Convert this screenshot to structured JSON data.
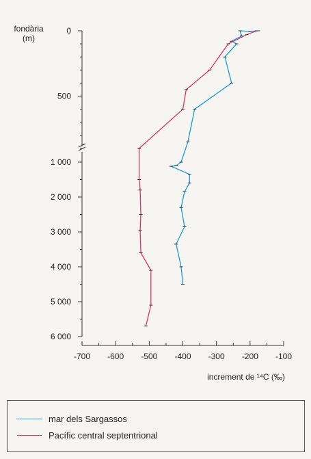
{
  "chart_data": {
    "type": "line",
    "title": "",
    "ylabel": "fondària (m)",
    "ylabel_lines": [
      "fondària",
      "(m)"
    ],
    "xlabel": "increment de ¹⁴C (‰)",
    "xlim": [
      -700,
      -100
    ],
    "x_ticks": [
      -700,
      -600,
      -500,
      -400,
      -300,
      -200,
      -100
    ],
    "x_tick_labels": [
      "-700",
      "-600",
      "-500",
      "-400",
      "-300",
      "-200",
      "-100"
    ],
    "y_upper_range": [
      0,
      900
    ],
    "y_upper_ticks": [
      0,
      500
    ],
    "y_upper_tick_labels": [
      "0",
      "500"
    ],
    "y_lower_range": [
      1000,
      6000
    ],
    "y_lower_ticks": [
      1000,
      2000,
      3000,
      4000,
      5000,
      6000
    ],
    "y_lower_tick_labels": [
      "1 000",
      "2 000",
      "3 000",
      "4 000",
      "5 000",
      "6 000"
    ],
    "axis_break": true,
    "legend_position": "bottom",
    "series": [
      {
        "name": "mar dels Sargassos",
        "color": "#1a9ad6",
        "points": [
          {
            "x": -175,
            "y": 0
          },
          {
            "x": -200,
            "y": 5
          },
          {
            "x": -230,
            "y": 0
          },
          {
            "x": -225,
            "y": 40
          },
          {
            "x": -255,
            "y": 80
          },
          {
            "x": -240,
            "y": 100
          },
          {
            "x": -275,
            "y": 200
          },
          {
            "x": -255,
            "y": 400
          },
          {
            "x": -365,
            "y": 600
          },
          {
            "x": -385,
            "y": 850
          },
          {
            "x": -405,
            "y": 1000
          },
          {
            "x": -420,
            "y": 1100
          },
          {
            "x": -435,
            "y": 1120
          },
          {
            "x": -380,
            "y": 1350
          },
          {
            "x": -380,
            "y": 1600
          },
          {
            "x": -395,
            "y": 1850
          },
          {
            "x": -405,
            "y": 2300
          },
          {
            "x": -395,
            "y": 2850
          },
          {
            "x": -420,
            "y": 3350
          },
          {
            "x": -405,
            "y": 4000
          },
          {
            "x": -400,
            "y": 4500
          }
        ]
      },
      {
        "name": "Pacífic central septentrional",
        "color": "#e0306a",
        "points": [
          {
            "x": -180,
            "y": 0
          },
          {
            "x": -210,
            "y": 30
          },
          {
            "x": -265,
            "y": 100
          },
          {
            "x": -320,
            "y": 300
          },
          {
            "x": -390,
            "y": 450
          },
          {
            "x": -400,
            "y": 600
          },
          {
            "x": -530,
            "y": 900
          },
          {
            "x": -530,
            "y": 1500
          },
          {
            "x": -527,
            "y": 1800
          },
          {
            "x": -525,
            "y": 2500
          },
          {
            "x": -527,
            "y": 2950
          },
          {
            "x": -525,
            "y": 3600
          },
          {
            "x": -495,
            "y": 4100
          },
          {
            "x": -495,
            "y": 5100
          },
          {
            "x": -510,
            "y": 5700
          }
        ]
      }
    ]
  }
}
